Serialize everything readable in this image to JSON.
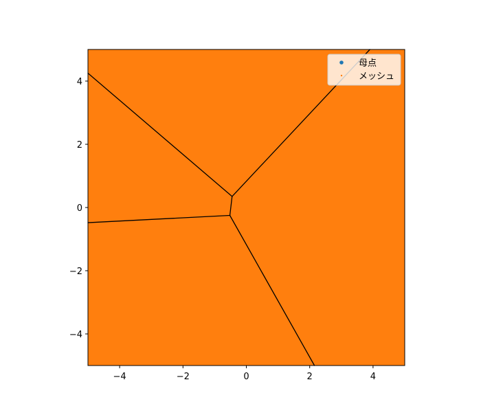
{
  "chart_data": {
    "type": "voronoi",
    "title": "",
    "xlabel": "",
    "ylabel": "",
    "xlim": [
      -5,
      5
    ],
    "ylim": [
      -5,
      5
    ],
    "grid": false,
    "legend_position": "top-right",
    "x_ticks": [
      -4,
      -2,
      0,
      2,
      4
    ],
    "y_ticks": [
      -4,
      -2,
      0,
      2,
      4
    ],
    "fill_color": "#ff7f0e",
    "edge_color": "#000000",
    "series": [
      {
        "name": "母点",
        "marker": "circle",
        "color": "#1f77b4"
      },
      {
        "name": "メッシュ",
        "marker": "point",
        "color": "#ff7f0e"
      }
    ],
    "vertices": [
      {
        "x": -0.45,
        "y": 0.35
      },
      {
        "x": -0.52,
        "y": -0.25
      }
    ],
    "edges": [
      {
        "from": [
          -5.0,
          4.25
        ],
        "to": [
          -0.45,
          0.35
        ]
      },
      {
        "from": [
          -0.45,
          0.35
        ],
        "to": [
          3.9,
          5.0
        ]
      },
      {
        "from": [
          -0.45,
          0.35
        ],
        "to": [
          -0.52,
          -0.25
        ]
      },
      {
        "from": [
          -5.0,
          -0.48
        ],
        "to": [
          -0.52,
          -0.25
        ]
      },
      {
        "from": [
          -0.52,
          -0.25
        ],
        "to": [
          2.15,
          -5.0
        ]
      }
    ]
  }
}
